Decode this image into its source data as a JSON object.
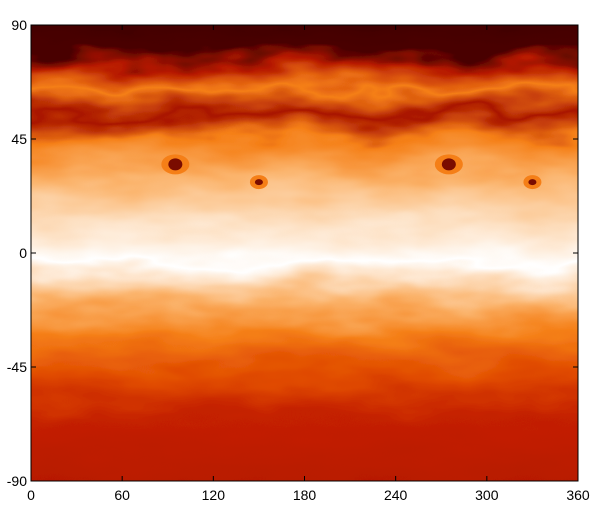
{
  "chart_data": {
    "type": "heatmap",
    "title": "",
    "xlabel": "",
    "ylabel": "",
    "xlim": [
      0,
      360
    ],
    "ylim": [
      -90,
      90
    ],
    "x_ticks": [
      0,
      60,
      120,
      180,
      240,
      300,
      360
    ],
    "y_ticks": [
      90,
      45,
      0,
      -45,
      -90
    ],
    "x_tick_labels": [
      "0",
      "60",
      "120",
      "180",
      "240",
      "300",
      "360"
    ],
    "y_tick_labels": [
      "90",
      "45",
      "0",
      "-45",
      "-90"
    ],
    "colormap": [
      "#3d0000",
      "#7a0c00",
      "#b51800",
      "#e04a00",
      "#f57f17",
      "#fbb36b",
      "#fde0c2",
      "#ffffff"
    ],
    "grid": false,
    "legend": "none",
    "field_description_bands": [
      {
        "lat_range": [
          70,
          90
        ],
        "level": 0.05
      },
      {
        "lat_range": [
          55,
          70
        ],
        "level": 0.45
      },
      {
        "lat_range": [
          35,
          55
        ],
        "level": 0.55
      },
      {
        "lat_range": [
          15,
          35
        ],
        "level": 0.7
      },
      {
        "lat_range": [
          -10,
          15
        ],
        "level": 0.95
      },
      {
        "lat_range": [
          -30,
          -10
        ],
        "level": 0.7
      },
      {
        "lat_range": [
          -55,
          -30
        ],
        "level": 0.5
      },
      {
        "lat_range": [
          -90,
          -55
        ],
        "level": 0.3
      }
    ]
  }
}
